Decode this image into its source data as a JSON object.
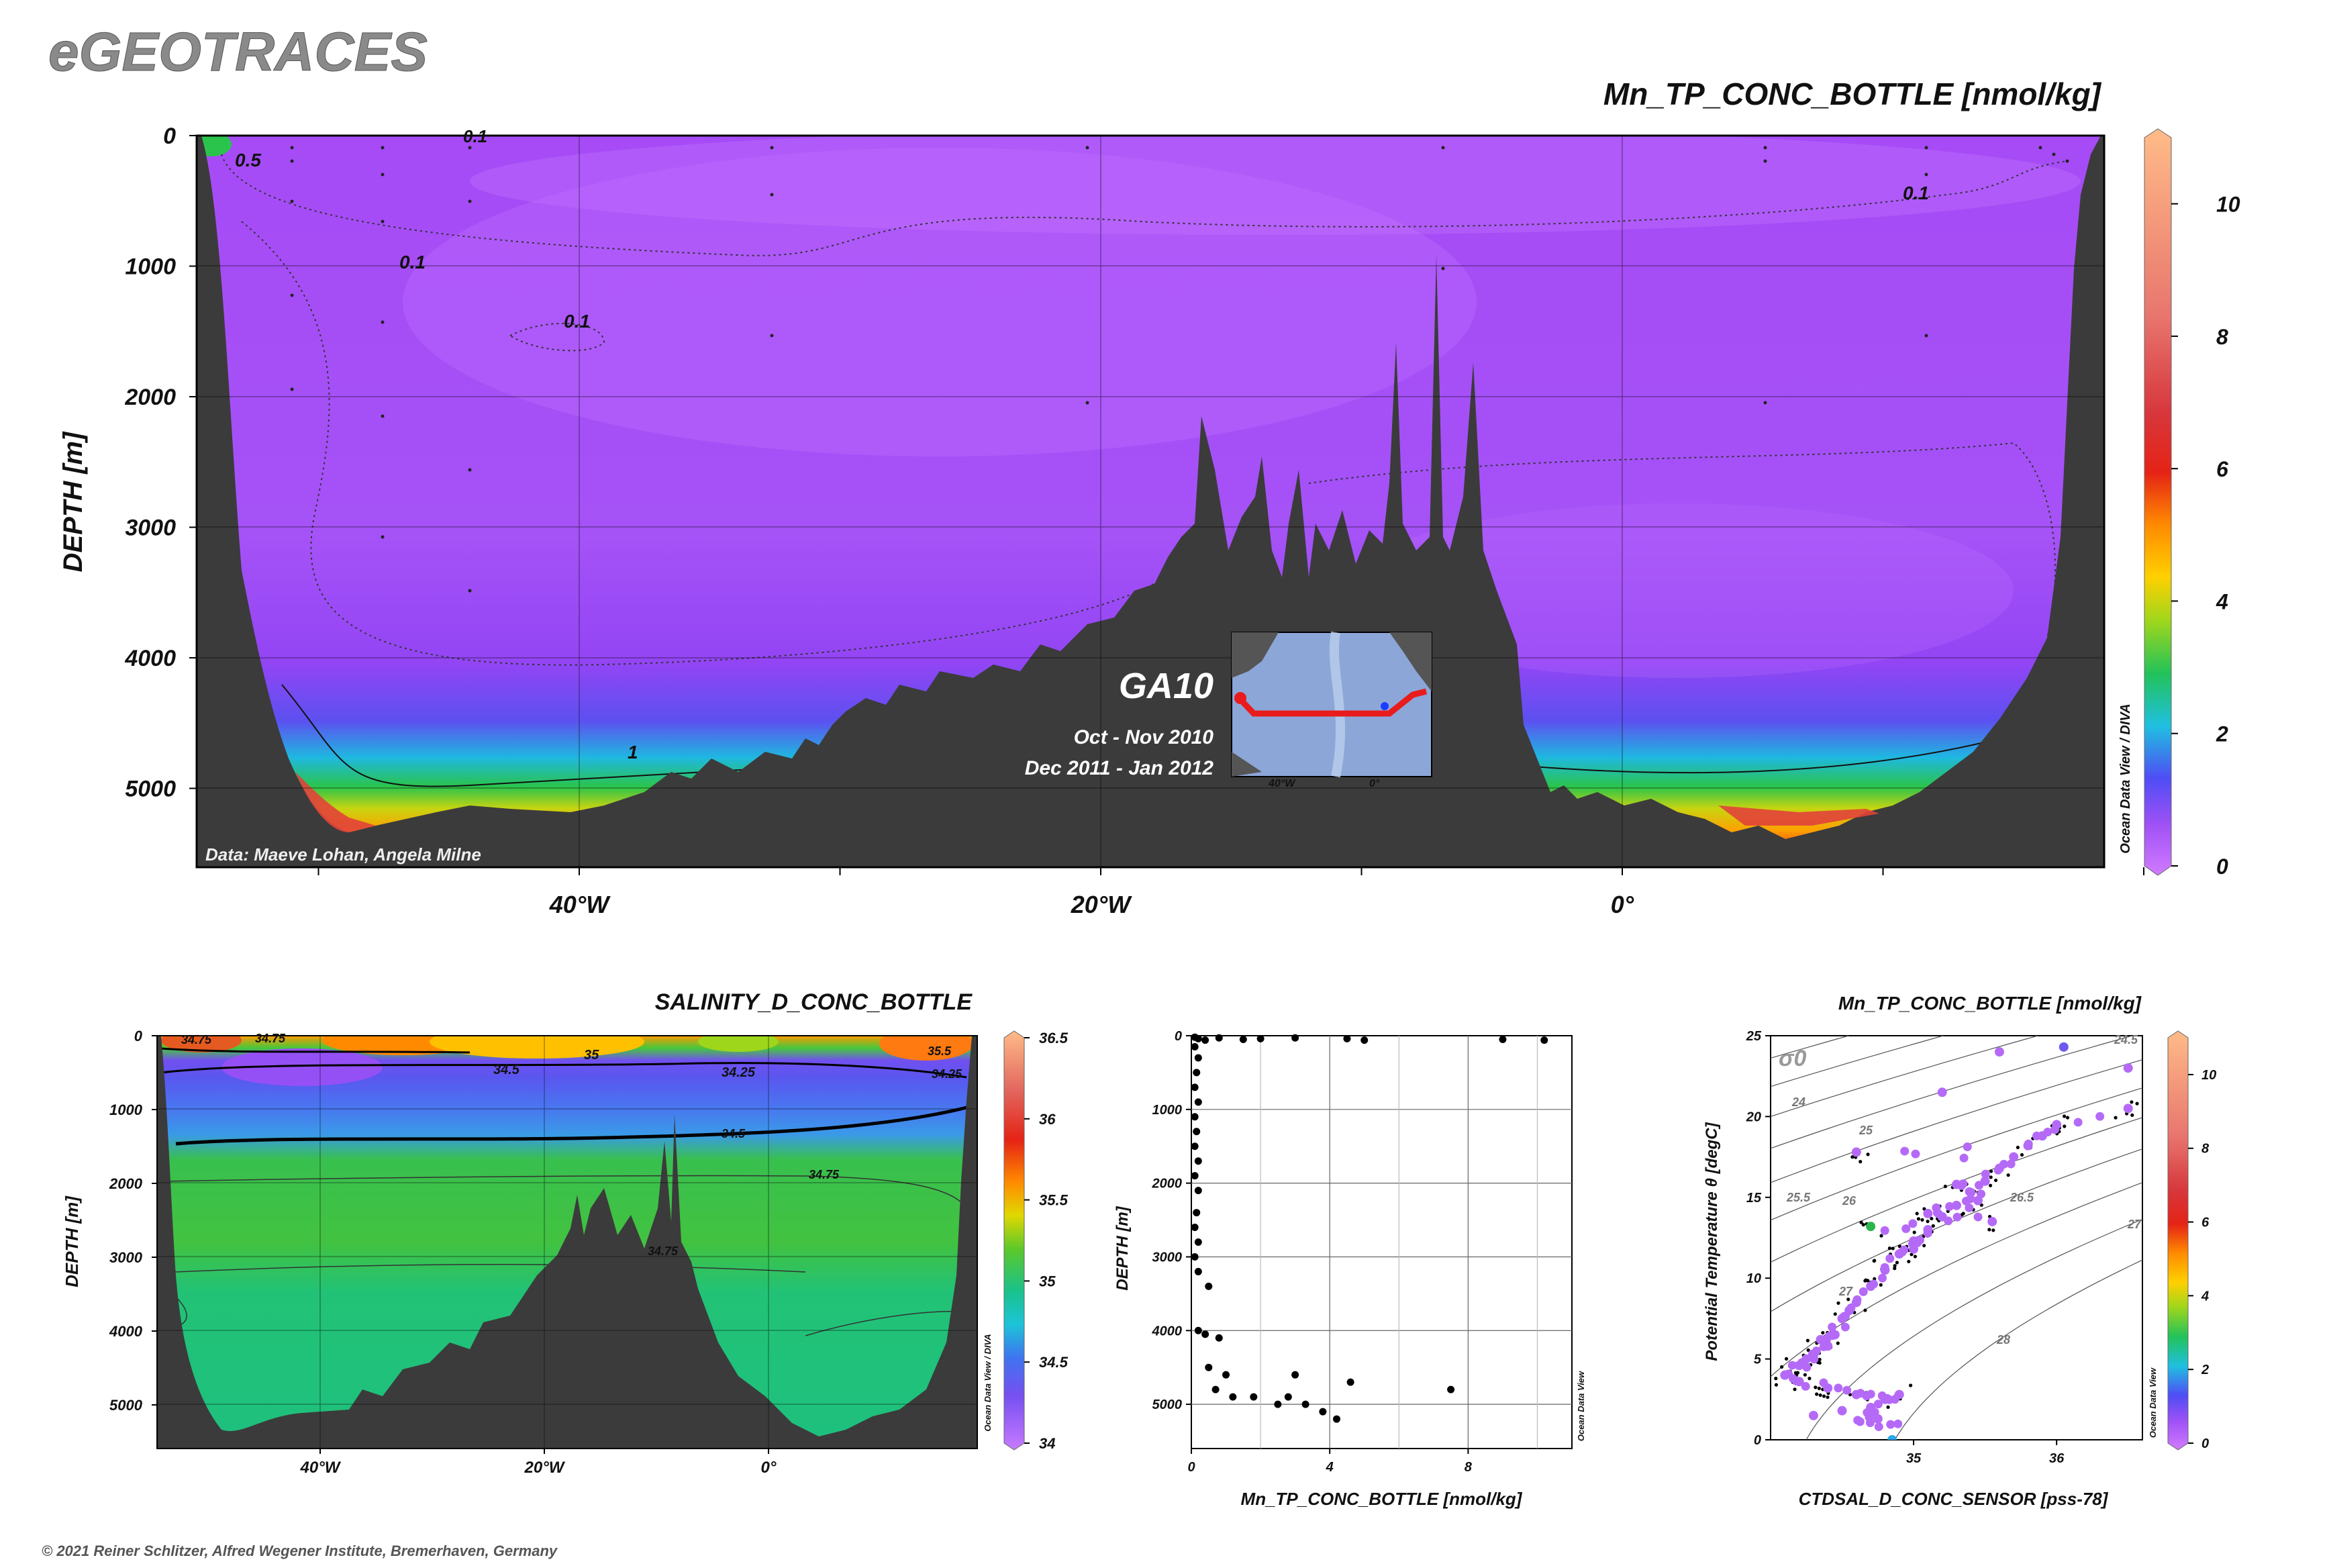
{
  "header": {
    "brand": "eGEOTRACES",
    "copyright": "© 2021 Reiner Schlitzer, Alfred Wegener Institute, Bremerhaven, Germany"
  },
  "main_section": {
    "title": "Mn_TP_CONC_BOTTLE [nmol/kg]",
    "ylabel": "DEPTH [m]",
    "y_ticks": [
      "0",
      "1000",
      "2000",
      "3000",
      "4000",
      "5000"
    ],
    "x_ticks": [
      "40°W",
      "20°W",
      "0°"
    ],
    "data_credit": "Data: Maeve Lohan, Angela Milne",
    "odv_credit": "Ocean Data View / DIVA",
    "colorbar_ticks": [
      "0",
      "2",
      "4",
      "6",
      "8",
      "10"
    ],
    "contour_labels": [
      "0.5",
      "0.1",
      "0.1",
      "0.1",
      "0.1",
      "1"
    ],
    "inset": {
      "cruise": "GA10",
      "date1": "Oct - Nov 2010",
      "date2": "Dec 2011 - Jan 2012",
      "lon_labels": [
        "40°W",
        "0°"
      ]
    }
  },
  "salinity_section": {
    "title": "SALINITY_D_CONC_BOTTLE",
    "ylabel": "DEPTH [m]",
    "y_ticks": [
      "0",
      "1000",
      "2000",
      "3000",
      "4000",
      "5000"
    ],
    "x_ticks": [
      "40°W",
      "20°W",
      "0°"
    ],
    "odv_credit": "Ocean Data View / DIVA",
    "colorbar_ticks": [
      "34",
      "34.5",
      "35",
      "35.5",
      "36",
      "36.5"
    ],
    "contour_labels": [
      "34.75",
      "34.75",
      "35",
      "34.5",
      "34.25",
      "35.5",
      "34.25",
      "34.5",
      "34.75",
      "34.75"
    ]
  },
  "profile_plot": {
    "xlabel": "Mn_TP_CONC_BOTTLE [nmol/kg]",
    "ylabel": "DEPTH [m]",
    "x_ticks": [
      "0",
      "4",
      "8"
    ],
    "y_ticks": [
      "0",
      "1000",
      "2000",
      "3000",
      "4000",
      "5000"
    ],
    "odv_credit": "Ocean Data View"
  },
  "ts_plot": {
    "title": "Mn_TP_CONC_BOTTLE [nmol/kg]",
    "xlabel": "CTDSAL_D_CONC_SENSOR [pss-78]",
    "ylabel": "Potential Temperature θ [degC]",
    "x_ticks": [
      "35",
      "36"
    ],
    "y_ticks": [
      "0",
      "5",
      "10",
      "15",
      "20",
      "25"
    ],
    "sigma_label": "σ0",
    "isopycnal_labels": [
      "24.5",
      "24",
      "25",
      "25.5",
      "26",
      "26.5",
      "27",
      "27",
      "28"
    ],
    "odv_credit": "Ocean Data View",
    "colorbar_ticks": [
      "0",
      "2",
      "4",
      "6",
      "8",
      "10"
    ]
  },
  "chart_data": [
    {
      "type": "heatmap",
      "title": "Mn_TP_CONC_BOTTLE [nmol/kg]",
      "ylabel": "DEPTH [m]",
      "ylim": [
        5600,
        0
      ],
      "xlim": [
        -57,
        16
      ],
      "colorbar_range": [
        0,
        11
      ],
      "contour_levels": [
        0.1,
        0.5,
        1
      ]
    },
    {
      "type": "heatmap",
      "title": "SALINITY_D_CONC_BOTTLE",
      "ylabel": "DEPTH [m]",
      "ylim": [
        5600,
        0
      ],
      "xlim": [
        -57,
        16
      ],
      "colorbar_range": [
        34,
        36.5
      ],
      "contour_levels": [
        34.25,
        34.5,
        34.75,
        35,
        35.5
      ]
    },
    {
      "type": "scatter",
      "xlabel": "Mn_TP_CONC_BOTTLE [nmol/kg]",
      "ylabel": "DEPTH [m]",
      "xlim": [
        0,
        11
      ],
      "ylim": [
        5600,
        0
      ],
      "points": [
        [
          0.1,
          20
        ],
        [
          0.2,
          40
        ],
        [
          0.4,
          60
        ],
        [
          0.8,
          30
        ],
        [
          1.5,
          50
        ],
        [
          2.0,
          40
        ],
        [
          3.0,
          30
        ],
        [
          4.5,
          40
        ],
        [
          5.0,
          60
        ],
        [
          9.0,
          50
        ],
        [
          10.2,
          60
        ],
        [
          0.1,
          150
        ],
        [
          0.2,
          300
        ],
        [
          0.15,
          500
        ],
        [
          0.1,
          700
        ],
        [
          0.2,
          900
        ],
        [
          0.1,
          1100
        ],
        [
          0.15,
          1300
        ],
        [
          0.1,
          1500
        ],
        [
          0.2,
          1700
        ],
        [
          0.1,
          1900
        ],
        [
          0.2,
          2100
        ],
        [
          0.15,
          2400
        ],
        [
          0.1,
          2600
        ],
        [
          0.2,
          2800
        ],
        [
          0.1,
          3000
        ],
        [
          0.2,
          3200
        ],
        [
          0.5,
          3400
        ],
        [
          0.2,
          4000
        ],
        [
          0.4,
          4050
        ],
        [
          0.8,
          4100
        ],
        [
          0.5,
          4500
        ],
        [
          1.0,
          4600
        ],
        [
          0.7,
          4800
        ],
        [
          1.2,
          4900
        ],
        [
          1.8,
          4900
        ],
        [
          2.8,
          4900
        ],
        [
          3.0,
          4600
        ],
        [
          3.3,
          5000
        ],
        [
          3.8,
          5100
        ],
        [
          4.2,
          5200
        ],
        [
          4.6,
          4700
        ],
        [
          7.5,
          4800
        ],
        [
          2.5,
          5000
        ]
      ]
    },
    {
      "type": "scatter",
      "xlabel": "CTDSAL_D_CONC_SENSOR [pss-78]",
      "ylabel": "Potential Temperature θ [degC]",
      "xlim": [
        34.0,
        36.6
      ],
      "ylim": [
        0,
        25
      ],
      "colorbar_range": [
        0,
        11
      ],
      "points": [
        [
          34.3,
          1.5,
          0.2
        ],
        [
          34.5,
          1.8,
          0.4
        ],
        [
          34.7,
          2.0,
          0.2
        ],
        [
          34.8,
          2.5,
          0.3
        ],
        [
          34.9,
          2.8,
          0.3
        ],
        [
          34.75,
          1.3,
          0.4
        ],
        [
          34.6,
          2.8,
          0.3
        ],
        [
          34.4,
          3.2,
          0.3
        ],
        [
          34.2,
          3.6,
          0.2
        ],
        [
          34.1,
          4.0,
          0.3
        ],
        [
          34.2,
          4.6,
          0.3
        ],
        [
          34.3,
          5.2,
          0.4
        ],
        [
          34.4,
          5.8,
          0.3
        ],
        [
          34.45,
          6.5,
          0.3
        ],
        [
          34.5,
          7.5,
          0.3
        ],
        [
          34.6,
          8.5,
          0.4
        ],
        [
          34.7,
          9.5,
          0.3
        ],
        [
          34.8,
          10.5,
          0.4
        ],
        [
          34.9,
          11.5,
          0.3
        ],
        [
          35.0,
          12.3,
          0.4
        ],
        [
          35.1,
          13.0,
          0.3
        ],
        [
          35.2,
          13.8,
          0.4
        ],
        [
          35.3,
          14.5,
          0.3
        ],
        [
          35.4,
          15.3,
          0.4
        ],
        [
          35.5,
          16.0,
          0.3
        ],
        [
          35.6,
          16.8,
          0.4
        ],
        [
          35.7,
          17.5,
          0.3
        ],
        [
          35.8,
          18.2,
          0.4
        ],
        [
          35.9,
          18.8,
          0.3
        ],
        [
          36.0,
          19.5,
          0.4
        ],
        [
          36.5,
          20.5,
          0.5
        ],
        [
          36.5,
          23.0,
          0.5
        ],
        [
          36.05,
          24.3,
          0.8
        ],
        [
          35.6,
          24.0,
          0.6
        ],
        [
          34.7,
          13.2,
          4.5
        ],
        [
          34.6,
          17.8,
          0.6
        ],
        [
          34.85,
          0.0,
          2.5
        ],
        [
          35.2,
          21.5,
          0.5
        ],
        [
          35.1,
          14.0,
          0.3
        ],
        [
          35.3,
          15.8,
          0.3
        ],
        [
          35.55,
          13.5,
          0.3
        ],
        [
          35.45,
          14.8,
          0.3
        ],
        [
          35.0,
          11.8,
          0.3
        ],
        [
          34.55,
          8.0,
          0.3
        ],
        [
          34.35,
          6.2,
          0.3
        ],
        [
          34.25,
          5.0,
          0.3
        ]
      ]
    }
  ]
}
